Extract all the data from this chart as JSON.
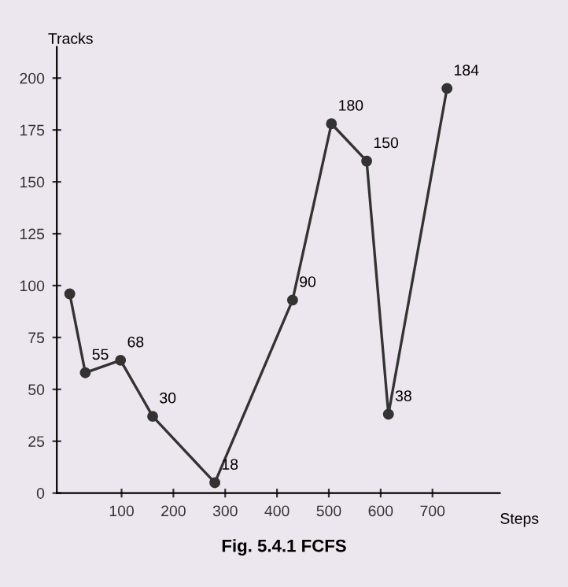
{
  "chart_data": {
    "type": "line",
    "ylabel": "Tracks",
    "xlabel": "Steps",
    "title": "Fig. 5.4.1 FCFS",
    "x": [
      0,
      30,
      98,
      160,
      280,
      430,
      505,
      573,
      615,
      728
    ],
    "series": [
      {
        "color": "#333333",
        "values": [
          96,
          58,
          64,
          37,
          5,
          93,
          178,
          160,
          38,
          195
        ]
      }
    ],
    "xlim": [
      -25,
      830
    ],
    "xticks": [
      100,
      200,
      300,
      400,
      500,
      600,
      700
    ],
    "ylim": [
      0,
      215
    ],
    "yticks": [
      0,
      25,
      50,
      75,
      100,
      125,
      150,
      175,
      200
    ],
    "marker": "circle",
    "line_style": "solid",
    "grid": false,
    "annotations": [
      {
        "text": "55",
        "x": 30,
        "y": 58
      },
      {
        "text": "68",
        "x": 98,
        "y": 64
      },
      {
        "text": "30",
        "x": 160,
        "y": 37
      },
      {
        "text": "18",
        "x": 280,
        "y": 5
      },
      {
        "text": "90",
        "x": 430,
        "y": 93
      },
      {
        "text": "180",
        "x": 505,
        "y": 178
      },
      {
        "text": "150",
        "x": 573,
        "y": 160
      },
      {
        "text": "38",
        "x": 615,
        "y": 38
      },
      {
        "text": "184",
        "x": 728,
        "y": 195
      }
    ]
  }
}
